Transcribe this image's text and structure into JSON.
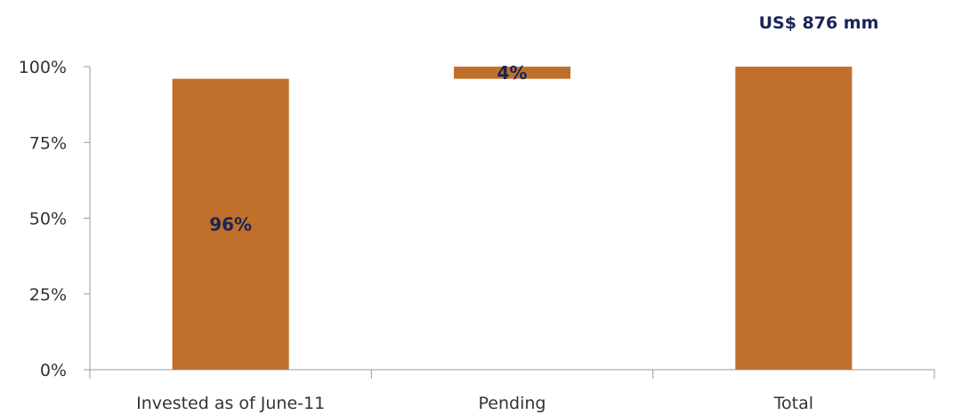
{
  "chart_data": {
    "type": "bar",
    "subtype": "waterfall",
    "categories": [
      "Invested as of June-11",
      "Pending",
      "Total"
    ],
    "bars": [
      {
        "category": "Invested as of June-11",
        "base": 0,
        "value": 96,
        "label": "96%"
      },
      {
        "category": "Pending",
        "base": 96,
        "value": 4,
        "label": "4%"
      },
      {
        "category": "Total",
        "base": 0,
        "value": 100,
        "label": ""
      }
    ],
    "total_annotation": "US$ 876 mm",
    "ylim": [
      0,
      100
    ],
    "yticks": [
      0,
      25,
      50,
      75,
      100
    ],
    "ytick_labels": [
      "0%",
      "25%",
      "50%",
      "75%",
      "100%"
    ],
    "xlabel": "",
    "ylabel": "",
    "grid": false,
    "legend": "none",
    "colors": {
      "bar": "#c0702a",
      "data_label": "#1a2456",
      "axis": "#999999",
      "tick_text": "#333333"
    }
  }
}
